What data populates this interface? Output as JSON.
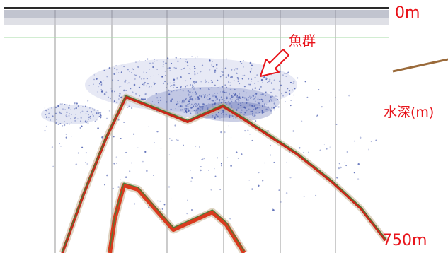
{
  "labels": {
    "depth_top": "0m",
    "depth_axis": "水深(m)",
    "depth_bottom": "750m",
    "fish_school": "魚群"
  },
  "colors": {
    "annotation_red": "#e8141b",
    "arrow_outline": "#e8141b",
    "pointer_line": "#9a6a3a",
    "echo_blue": "#3a4fa8",
    "seabed_red": "#c8281a",
    "seabed_green": "#2f8a3a"
  }
}
